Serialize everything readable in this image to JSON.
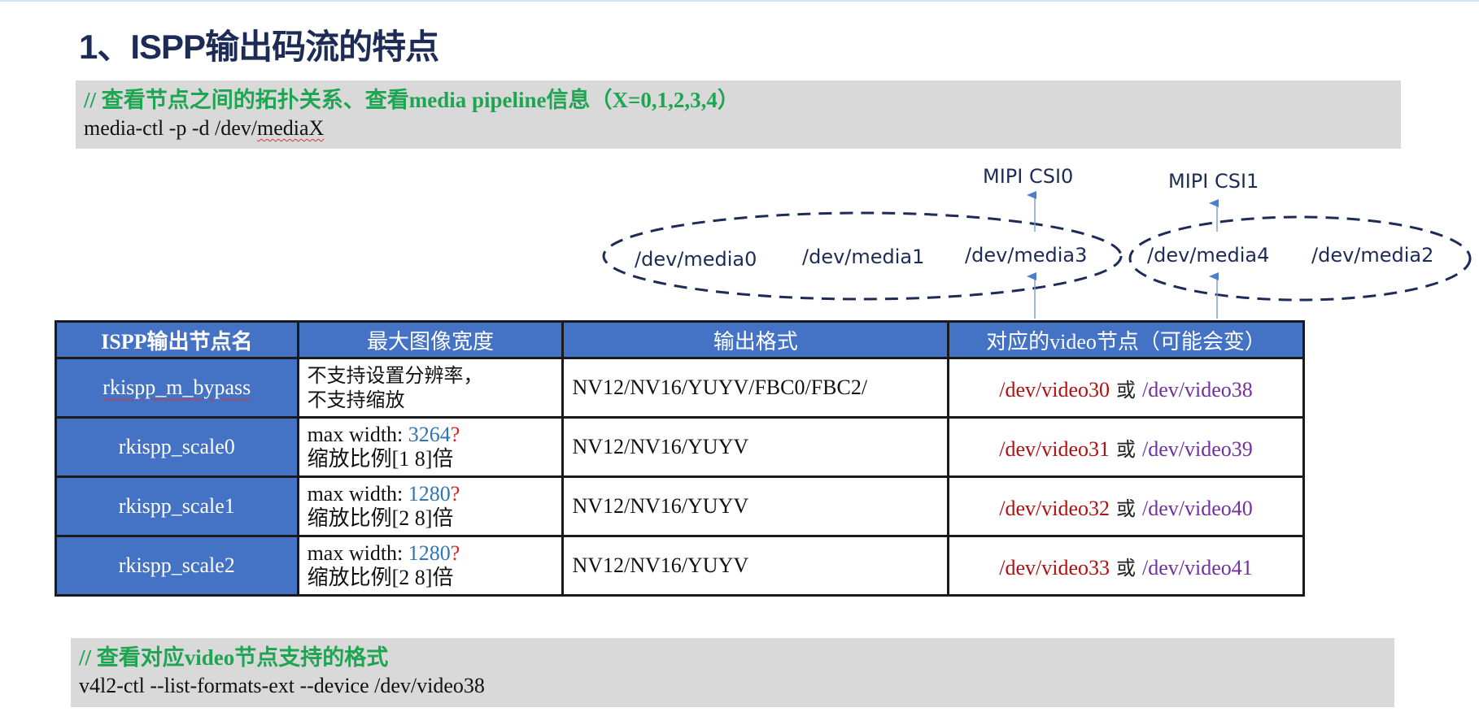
{
  "title": "1、ISPP输出码流的特点",
  "box1": {
    "comment": "// 查看节点之间的拓扑关系、查看media pipeline信息（X=0,1,2,3,4）",
    "cmd_prefix": "media-ctl -p -d /dev/",
    "cmd_word": "mediaX"
  },
  "diagram": {
    "group1": [
      "/dev/media0",
      "/dev/media1",
      "/dev/media3"
    ],
    "group2": [
      "/dev/media4",
      "/dev/media2"
    ],
    "mipi0": "MIPI CSI0",
    "mipi1": "MIPI CSI1",
    "colors": {
      "arrow": "#4a7fd0",
      "ellipse": "#1d2b57"
    }
  },
  "table": {
    "headers": [
      "ISPP输出节点名",
      "最大图像宽度",
      "输出格式",
      "对应的video节点（可能会变）"
    ],
    "rows": [
      {
        "name": "rkispp_m_bypass",
        "w1": "不支持设置分辨率，",
        "w2": "不支持缩放",
        "fmt": "NV12/NV16/YUYV/FBC0/FBC2/",
        "v1": "/dev/video30",
        "or": "或",
        "v2": "/dev/video38"
      },
      {
        "name": "rkispp_scale0",
        "wlabel": "max width: ",
        "wval": "3264",
        "q": "?",
        "w2": "缩放比例[1 8]倍",
        "fmt": "NV12/NV16/YUYV",
        "v1": "/dev/video31",
        "or": "或",
        "v2": "/dev/video39"
      },
      {
        "name": "rkispp_scale1",
        "wlabel": "max width: ",
        "wval": "1280",
        "q": "?",
        "w2": "缩放比例[2 8]倍",
        "fmt": "NV12/NV16/YUYV",
        "v1": "/dev/video32",
        "or": "或",
        "v2": "/dev/video40"
      },
      {
        "name": "rkispp_scale2",
        "wlabel": "max width: ",
        "wval": "1280",
        "q": "?",
        "w2": "缩放比例[2 8]倍",
        "fmt": "NV12/NV16/YUYV",
        "v1": "/dev/video33",
        "or": "或",
        "v2": "/dev/video41"
      }
    ],
    "colors": {
      "header": "#4472c4",
      "video_a": "#b01010",
      "video_b": "#7030a0",
      "width": "#2e75b6"
    }
  },
  "box2": {
    "comment": "// 查看对应video节点支持的格式",
    "cmd": "v4l2-ctl --list-formats-ext --device /dev/video38"
  }
}
